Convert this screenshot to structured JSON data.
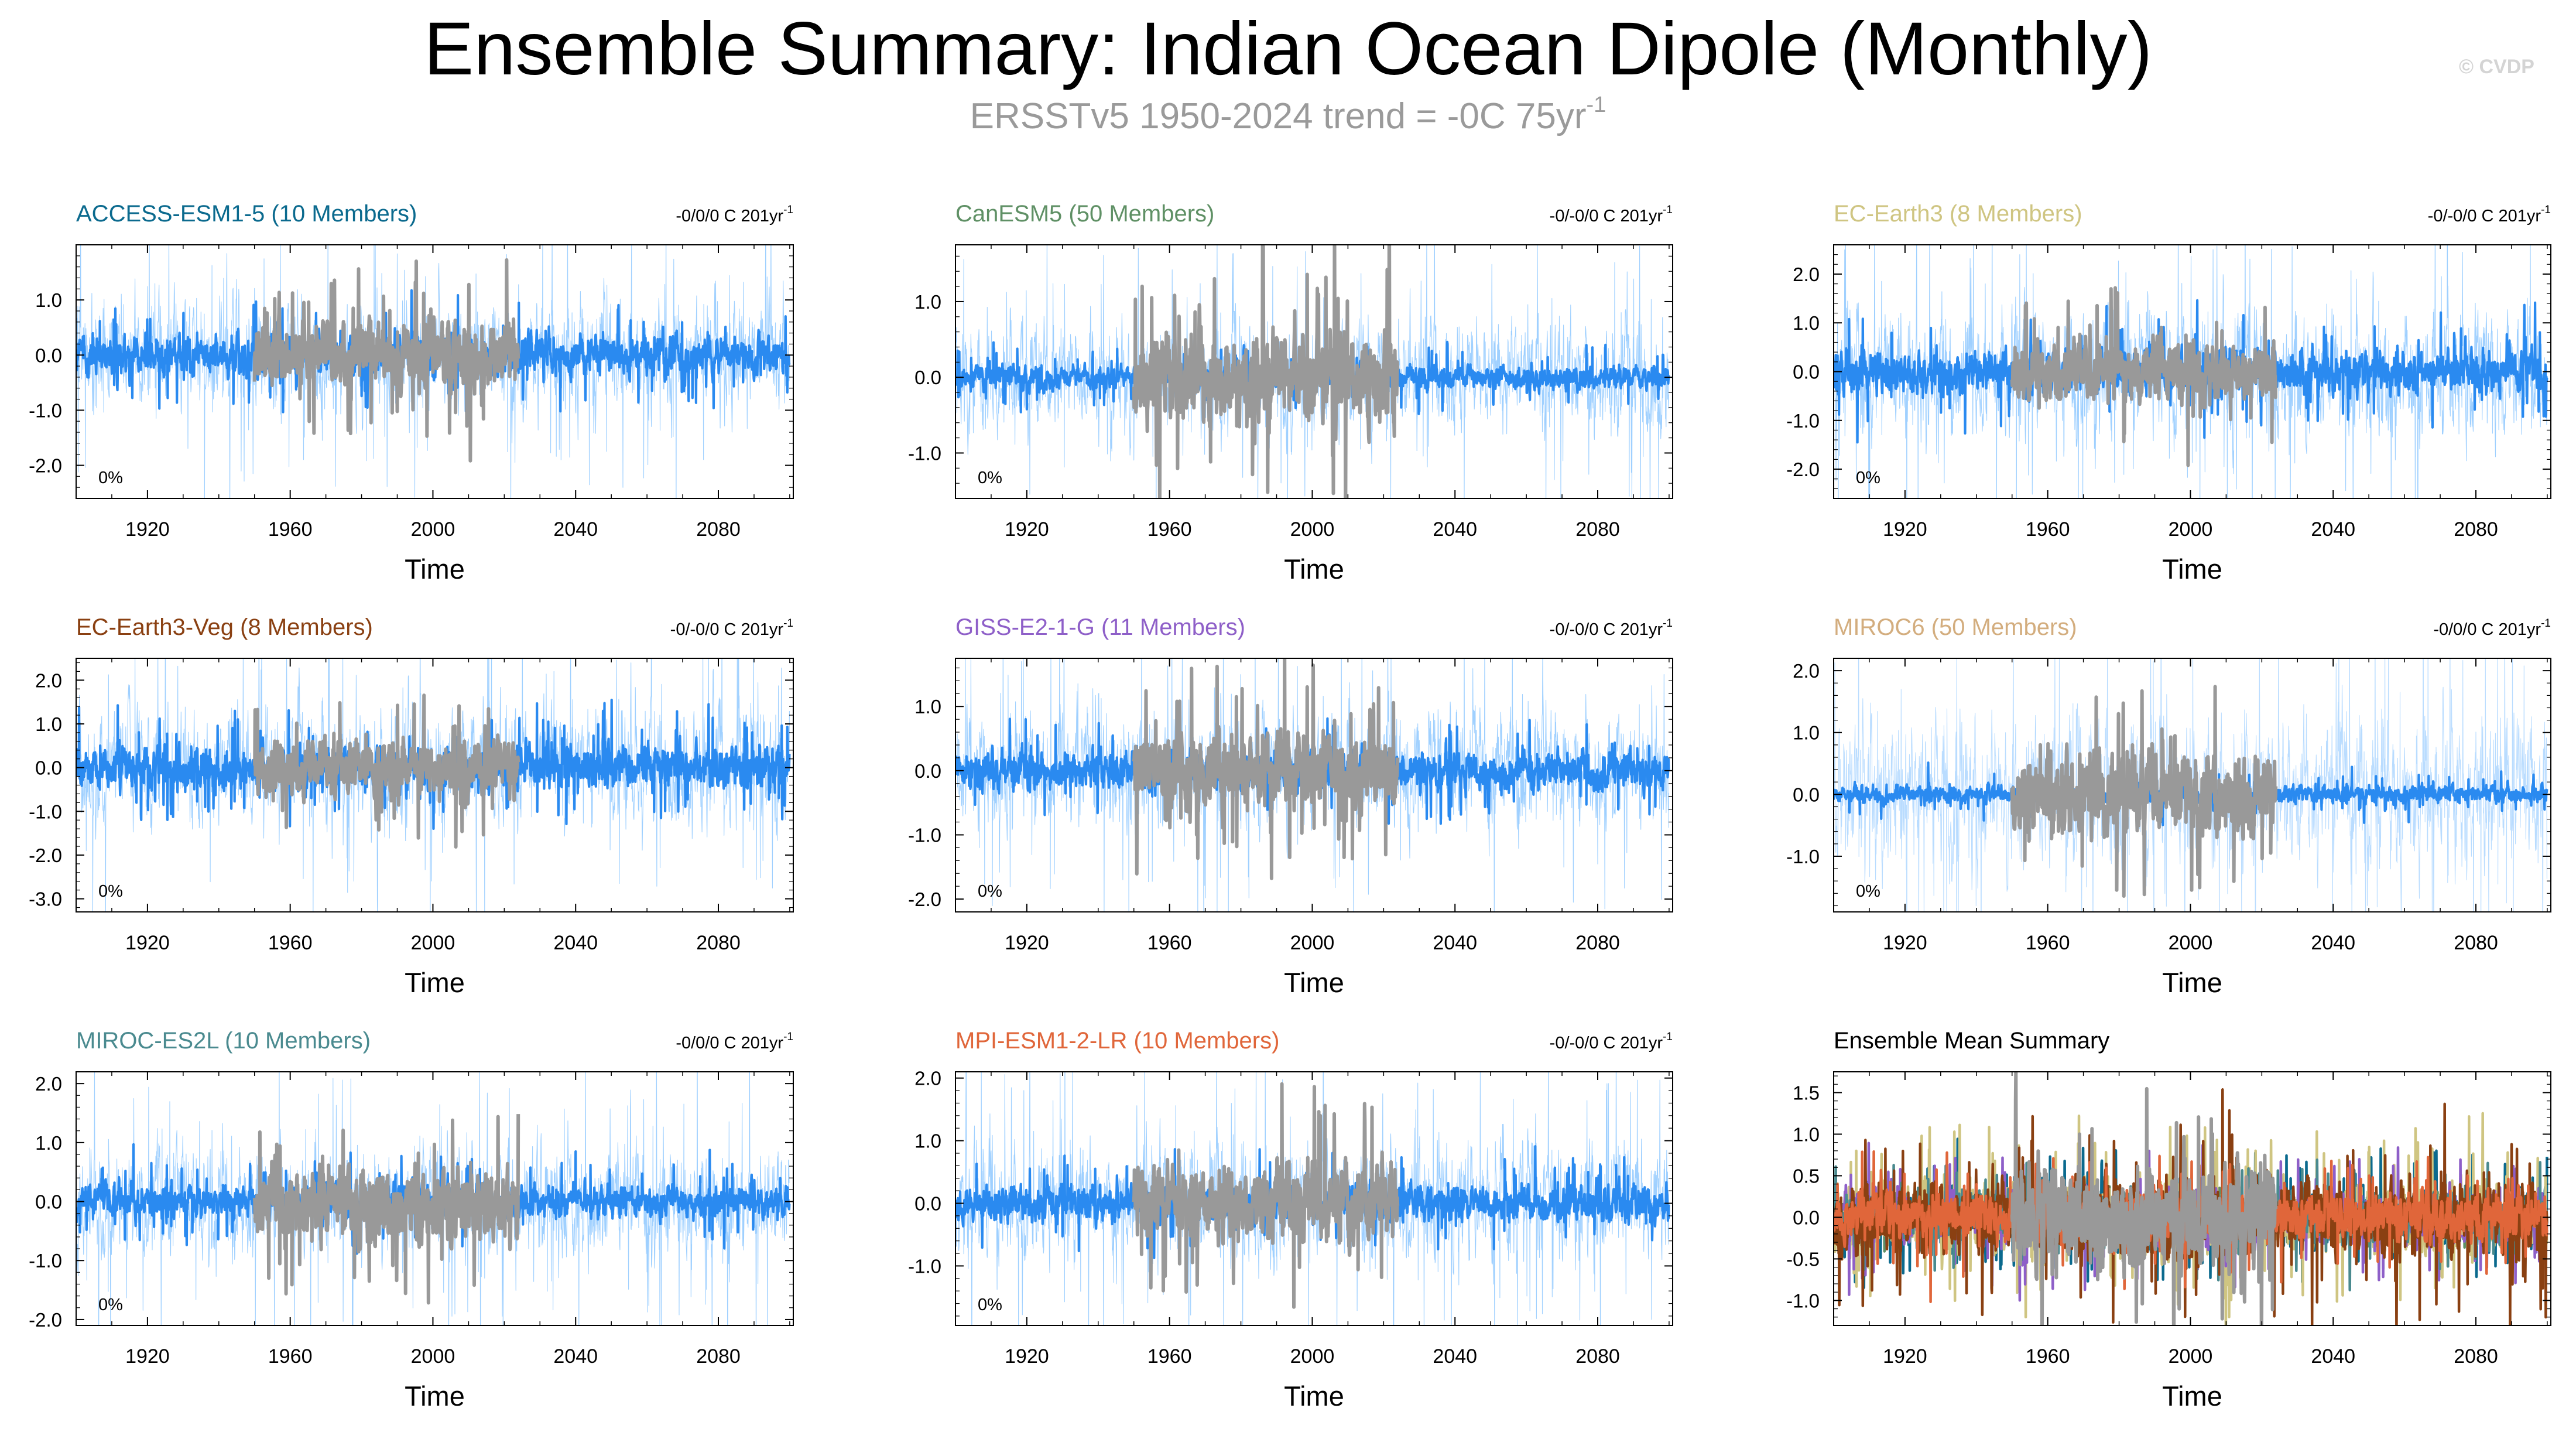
{
  "header": {
    "title": "Ensemble Summary: Indian Ocean Dipole (Monthly)",
    "subtitle": "ERSSTv5 1950-2024 trend = -0C 75yr",
    "subtitle_sup": "-1",
    "watermark": "© CVDP"
  },
  "colors": {
    "observations": "#999999",
    "ensemble_range": "#9fd0ff",
    "ensemble_mean": "#2a8af0"
  },
  "chart_data": [
    {
      "type": "line",
      "title": "ACCESS-ESM1-5 (10 Members)",
      "title_color": "#0b6a8e",
      "trend_label": "-0/0/0 C 201yr",
      "trend_sup": "-1",
      "xlabel": "Time",
      "ylabel": "",
      "xlim": [
        1900,
        2101
      ],
      "ylim": [
        -2.6,
        2.0
      ],
      "xticks": [
        1920,
        1960,
        2000,
        2040,
        2080
      ],
      "yticks": [
        1.0,
        0.0,
        -1.0,
        -2.0
      ],
      "ytick_labels": [
        "1.0",
        "0.0",
        "-1.0",
        "-2.0"
      ],
      "annotation": "0%",
      "series": [
        {
          "name": "Ensemble Range",
          "color": "#9fd0ff",
          "x_range": [
            1900,
            2100
          ],
          "amplitude": 1.0,
          "seed": 11
        },
        {
          "name": "Ensemble Mean",
          "color": "#2a8af0",
          "x_range": [
            1900,
            2100
          ],
          "amplitude": 0.36,
          "seed": 12
        },
        {
          "name": "ERSSTv5",
          "color": "#999999",
          "x_range": [
            1950,
            2024
          ],
          "amplitude": 0.6,
          "seed": 13
        }
      ]
    },
    {
      "type": "line",
      "title": "CanESM5 (50 Members)",
      "title_color": "#5f9065",
      "trend_label": "-0/-0/0 C 201yr",
      "trend_sup": "-1",
      "xlabel": "Time",
      "ylabel": "",
      "xlim": [
        1900,
        2101
      ],
      "ylim": [
        -1.6,
        1.75
      ],
      "xticks": [
        1920,
        1960,
        2000,
        2040,
        2080
      ],
      "yticks": [
        1.0,
        0.0,
        -1.0
      ],
      "ytick_labels": [
        "1.0",
        "0.0",
        "-1.0"
      ],
      "annotation": "0%",
      "series": [
        {
          "name": "Ensemble Range",
          "color": "#9fd0ff",
          "x_range": [
            1900,
            2100
          ],
          "amplitude": 0.7,
          "seed": 21
        },
        {
          "name": "Ensemble Mean",
          "color": "#2a8af0",
          "x_range": [
            1900,
            2100
          ],
          "amplitude": 0.16,
          "seed": 22
        },
        {
          "name": "ERSSTv5",
          "color": "#999999",
          "x_range": [
            1950,
            2024
          ],
          "amplitude": 0.6,
          "seed": 23
        }
      ]
    },
    {
      "type": "line",
      "title": "EC-Earth3 (8 Members)",
      "title_color": "#cfc582",
      "trend_label": "-0/-0/0 C 201yr",
      "trend_sup": "-1",
      "xlabel": "Time",
      "ylabel": "",
      "xlim": [
        1900,
        2101
      ],
      "ylim": [
        -2.6,
        2.6
      ],
      "xticks": [
        1920,
        1960,
        2000,
        2040,
        2080
      ],
      "yticks": [
        2.0,
        1.0,
        0.0,
        -1.0,
        -2.0
      ],
      "ytick_labels": [
        "2.0",
        "1.0",
        "0.0",
        "-1.0",
        "-2.0"
      ],
      "annotation": "0%",
      "series": [
        {
          "name": "Ensemble Range",
          "color": "#9fd0ff",
          "x_range": [
            1900,
            2100
          ],
          "amplitude": 1.3,
          "seed": 31
        },
        {
          "name": "Ensemble Mean",
          "color": "#2a8af0",
          "x_range": [
            1900,
            2100
          ],
          "amplitude": 0.45,
          "seed": 32
        },
        {
          "name": "ERSSTv5",
          "color": "#999999",
          "x_range": [
            1950,
            2024
          ],
          "amplitude": 0.6,
          "seed": 33
        }
      ]
    },
    {
      "type": "line",
      "title": "EC-Earth3-Veg (8 Members)",
      "title_color": "#8a4012",
      "trend_label": "-0/-0/0 C 201yr",
      "trend_sup": "-1",
      "xlabel": "Time",
      "ylabel": "",
      "xlim": [
        1900,
        2101
      ],
      "ylim": [
        -3.3,
        2.5
      ],
      "xticks": [
        1920,
        1960,
        2000,
        2040,
        2080
      ],
      "yticks": [
        2.0,
        1.0,
        0.0,
        -1.0,
        -2.0,
        -3.0
      ],
      "ytick_labels": [
        "2.0",
        "1.0",
        "0.0",
        "-1.0",
        "-2.0",
        "-3.0"
      ],
      "annotation": "0%",
      "series": [
        {
          "name": "Ensemble Range",
          "color": "#9fd0ff",
          "x_range": [
            1900,
            2100
          ],
          "amplitude": 1.35,
          "seed": 41
        },
        {
          "name": "Ensemble Mean",
          "color": "#2a8af0",
          "x_range": [
            1900,
            2100
          ],
          "amplitude": 0.5,
          "seed": 42
        },
        {
          "name": "ERSSTv5",
          "color": "#999999",
          "x_range": [
            1950,
            2024
          ],
          "amplitude": 0.6,
          "seed": 43
        }
      ]
    },
    {
      "type": "line",
      "title": "GISS-E2-1-G (11 Members)",
      "title_color": "#8e5fc8",
      "trend_label": "-0/-0/0 C 201yr",
      "trend_sup": "-1",
      "xlabel": "Time",
      "ylabel": "",
      "xlim": [
        1900,
        2101
      ],
      "ylim": [
        -2.2,
        1.75
      ],
      "xticks": [
        1920,
        1960,
        2000,
        2040,
        2080
      ],
      "yticks": [
        1.0,
        0.0,
        -1.0,
        -2.0
      ],
      "ytick_labels": [
        "1.0",
        "0.0",
        "-1.0",
        "-2.0"
      ],
      "annotation": "0%",
      "series": [
        {
          "name": "Ensemble Range",
          "color": "#9fd0ff",
          "x_range": [
            1900,
            2100
          ],
          "amplitude": 0.9,
          "seed": 51
        },
        {
          "name": "Ensemble Mean",
          "color": "#2a8af0",
          "x_range": [
            1900,
            2100
          ],
          "amplitude": 0.3,
          "seed": 52
        },
        {
          "name": "ERSSTv5",
          "color": "#999999",
          "x_range": [
            1950,
            2024
          ],
          "amplitude": 0.6,
          "seed": 53
        }
      ]
    },
    {
      "type": "line",
      "title": "MIROC6 (50 Members)",
      "title_color": "#d3ad7e",
      "trend_label": "-0/0/0 C 201yr",
      "trend_sup": "-1",
      "xlabel": "Time",
      "ylabel": "",
      "xlim": [
        1900,
        2101
      ],
      "ylim": [
        -1.9,
        2.2
      ],
      "xticks": [
        1920,
        1960,
        2000,
        2040,
        2080
      ],
      "yticks": [
        2.0,
        1.0,
        0.0,
        -1.0
      ],
      "ytick_labels": [
        "2.0",
        "1.0",
        "0.0",
        "-1.0"
      ],
      "annotation": "0%",
      "series": [
        {
          "name": "Ensemble Range",
          "color": "#b9dcff",
          "x_range": [
            1900,
            2100
          ],
          "amplitude": 1.2,
          "seed": 61
        },
        {
          "name": "Ensemble Mean",
          "color": "#2a8af0",
          "x_range": [
            1900,
            2100
          ],
          "amplitude": 0.15,
          "seed": 62
        },
        {
          "name": "ERSSTv5",
          "color": "#999999",
          "x_range": [
            1950,
            2024
          ],
          "amplitude": 0.6,
          "seed": 63
        }
      ]
    },
    {
      "type": "line",
      "title": "MIROC-ES2L (10 Members)",
      "title_color": "#4a8a8f",
      "trend_label": "-0/0/0 C 201yr",
      "trend_sup": "-1",
      "xlabel": "Time",
      "ylabel": "",
      "xlim": [
        1900,
        2101
      ],
      "ylim": [
        -2.1,
        2.2
      ],
      "xticks": [
        1920,
        1960,
        2000,
        2040,
        2080
      ],
      "yticks": [
        2.0,
        1.0,
        0.0,
        -1.0,
        -2.0
      ],
      "ytick_labels": [
        "2.0",
        "1.0",
        "0.0",
        "-1.0",
        "-2.0"
      ],
      "annotation": "0%",
      "series": [
        {
          "name": "Ensemble Range",
          "color": "#9fd0ff",
          "x_range": [
            1900,
            2100
          ],
          "amplitude": 0.95,
          "seed": 71
        },
        {
          "name": "Ensemble Mean",
          "color": "#2a8af0",
          "x_range": [
            1900,
            2100
          ],
          "amplitude": 0.28,
          "seed": 72
        },
        {
          "name": "ERSSTv5",
          "color": "#999999",
          "x_range": [
            1950,
            2024
          ],
          "amplitude": 0.6,
          "seed": 73
        }
      ]
    },
    {
      "type": "line",
      "title": "MPI-ESM1-2-LR (10 Members)",
      "title_color": "#e0663a",
      "trend_label": "-0/-0/0 C 201yr",
      "trend_sup": "-1",
      "xlabel": "Time",
      "ylabel": "",
      "xlim": [
        1900,
        2101
      ],
      "ylim": [
        -1.95,
        2.1
      ],
      "xticks": [
        1920,
        1960,
        2000,
        2040,
        2080
      ],
      "yticks": [
        2.0,
        1.0,
        0.0,
        -1.0
      ],
      "ytick_labels": [
        "2.0",
        "1.0",
        "0.0",
        "-1.0"
      ],
      "annotation": "0%",
      "series": [
        {
          "name": "Ensemble Range",
          "color": "#9fd0ff",
          "x_range": [
            1900,
            2100
          ],
          "amplitude": 0.95,
          "seed": 81
        },
        {
          "name": "Ensemble Mean",
          "color": "#2a8af0",
          "x_range": [
            1900,
            2100
          ],
          "amplitude": 0.3,
          "seed": 82
        },
        {
          "name": "ERSSTv5",
          "color": "#999999",
          "x_range": [
            1950,
            2024
          ],
          "amplitude": 0.6,
          "seed": 83
        }
      ]
    },
    {
      "type": "line",
      "title": "Ensemble Mean Summary",
      "title_color": "#000000",
      "trend_label": "",
      "trend_sup": "",
      "xlabel": "Time",
      "ylabel": "",
      "xlim": [
        1900,
        2101
      ],
      "ylim": [
        -1.3,
        1.75
      ],
      "xticks": [
        1920,
        1960,
        2000,
        2040,
        2080
      ],
      "yticks": [
        1.5,
        1.0,
        0.5,
        0.0,
        -0.5,
        -1.0
      ],
      "ytick_labels": [
        "1.5",
        "1.0",
        "0.5",
        "0.0",
        "-0.5",
        "-1.0"
      ],
      "annotation": "",
      "series": [
        {
          "name": "ACCESS-ESM1-5",
          "color": "#0b6a8e",
          "x_range": [
            1900,
            2100
          ],
          "amplitude": 0.32,
          "seed": 91
        },
        {
          "name": "CanESM5",
          "color": "#5f9065",
          "x_range": [
            1900,
            2100
          ],
          "amplitude": 0.12,
          "seed": 92
        },
        {
          "name": "EC-Earth3",
          "color": "#cfc582",
          "x_range": [
            1900,
            2100
          ],
          "amplitude": 0.42,
          "seed": 93
        },
        {
          "name": "GISS-E2-1-G",
          "color": "#8e5fc8",
          "x_range": [
            1900,
            2100
          ],
          "amplitude": 0.3,
          "seed": 94
        },
        {
          "name": "MIROC6",
          "color": "#d3ad7e",
          "x_range": [
            1900,
            2100
          ],
          "amplitude": 0.1,
          "seed": 95
        },
        {
          "name": "MIROC-ES2L",
          "color": "#4a8a8f",
          "x_range": [
            1900,
            2100
          ],
          "amplitude": 0.27,
          "seed": 96
        },
        {
          "name": "EC-Earth3-Veg",
          "color": "#8a4012",
          "x_range": [
            1900,
            2100
          ],
          "amplitude": 0.45,
          "seed": 97
        },
        {
          "name": "MPI-ESM1-2-LR",
          "color": "#e0663a",
          "x_range": [
            1900,
            2100
          ],
          "amplitude": 0.28,
          "seed": 98
        },
        {
          "name": "ERSSTv5",
          "color": "#999999",
          "x_range": [
            1950,
            2024
          ],
          "amplitude": 0.6,
          "seed": 99
        }
      ]
    }
  ]
}
